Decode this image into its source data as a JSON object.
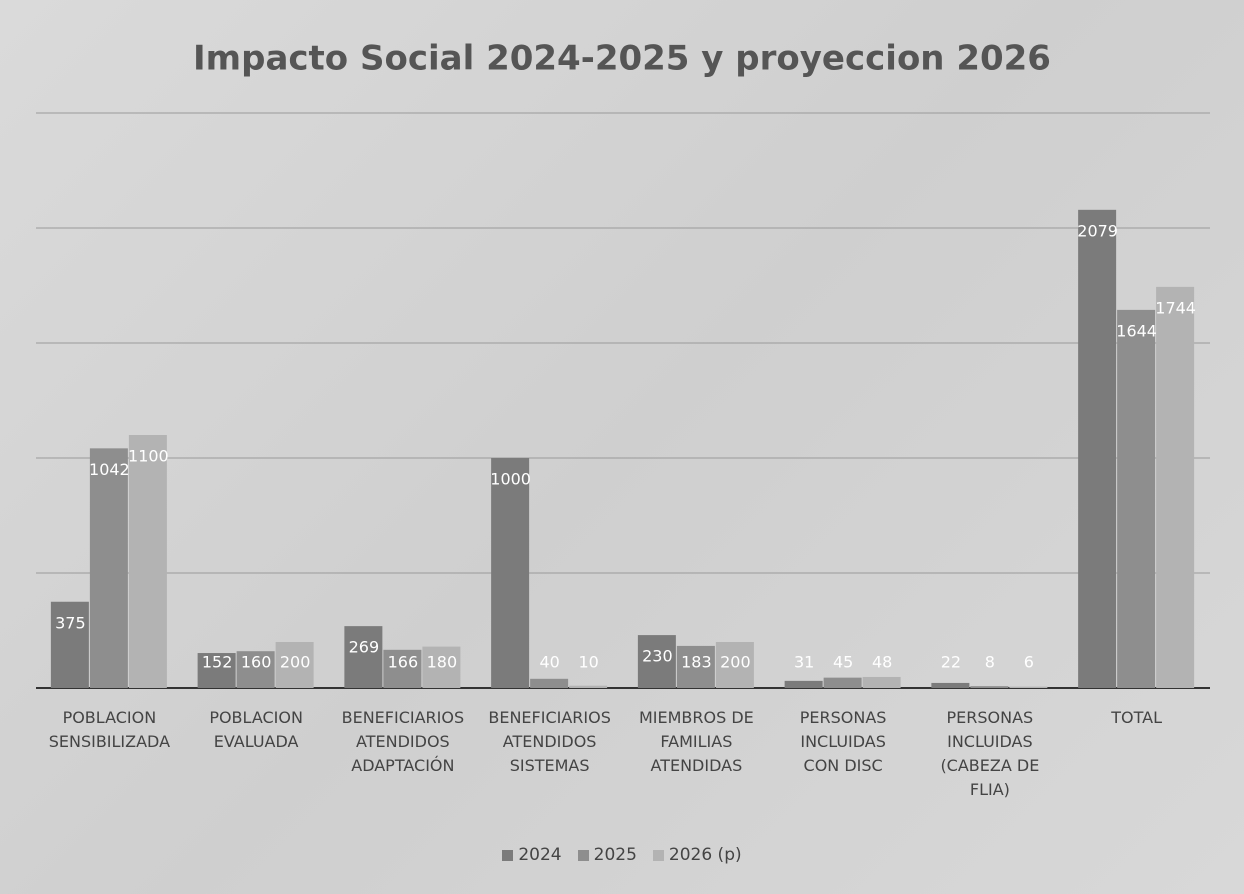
{
  "chart_data": {
    "type": "bar",
    "title": "Impacto Social 2024-2025 y proyeccion 2026",
    "categories": [
      "POBLACION\nSENSIBILIZADA",
      "POBLACION\nEVALUADA",
      "BENEFICIARIOS\nATENDIDOS\nADAPTACIÓN",
      "BENEFICIARIOS\nATENDIDOS\nSISTEMAS",
      "MIEMBROS DE\nFAMILIAS\nATENDIDAS",
      "PERSONAS\nINCLUIDAS\nCON DISC",
      "PERSONAS\nINCLUIDAS\n(CABEZA DE\nFLIA)",
      "TOTAL"
    ],
    "series": [
      {
        "name": "2024",
        "color": "#7b7b7b",
        "values": [
          375,
          152,
          269,
          1000,
          230,
          31,
          22,
          2079
        ]
      },
      {
        "name": "2025",
        "color": "#8e8e8e",
        "values": [
          1042,
          160,
          166,
          40,
          183,
          45,
          8,
          1644
        ]
      },
      {
        "name": "2026 (p)",
        "color": "#b3b3b3",
        "values": [
          1100,
          200,
          180,
          10,
          200,
          48,
          6,
          1744
        ]
      }
    ],
    "ylim": [
      0,
      2500
    ],
    "yticks": [
      0,
      500,
      1000,
      1500,
      2000,
      2500
    ],
    "grid": true,
    "legend": "bottom"
  }
}
